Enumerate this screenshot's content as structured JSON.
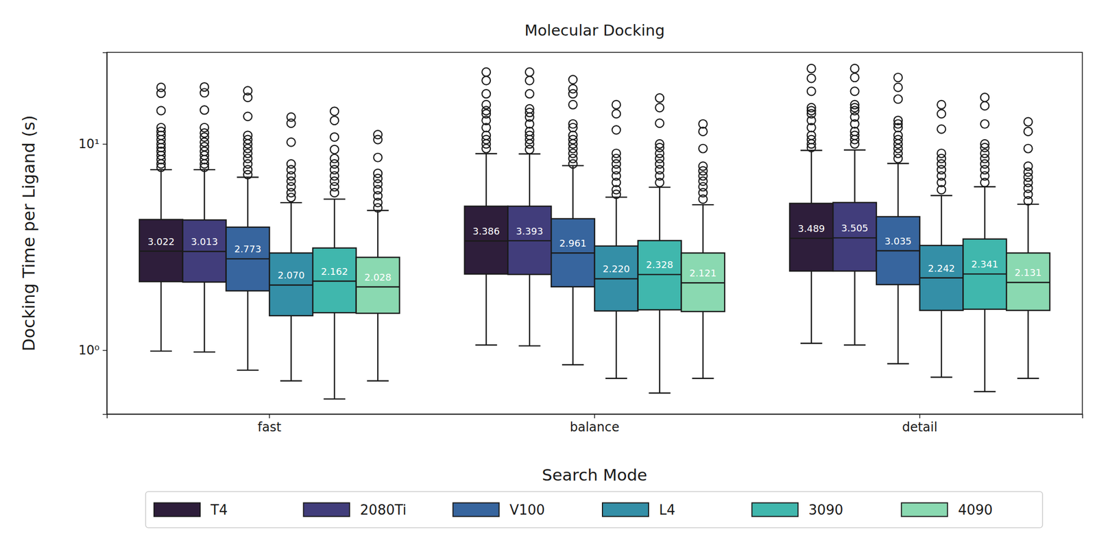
{
  "chart_data": {
    "type": "box",
    "title": "Molecular Docking",
    "x_label": "Search Mode",
    "y_label": "Docking Time per Ligand (s)",
    "categories": [
      "fast",
      "balance",
      "detail"
    ],
    "log": "y",
    "ylim": [
      0.49,
      27.8
    ],
    "yticks": [
      {
        "value": 1,
        "label": "10⁰"
      },
      {
        "value": 10,
        "label": "10¹"
      }
    ],
    "data_labels": true,
    "legend": "bottom",
    "series": [
      {
        "name": "T4",
        "color": "#2e1e3b",
        "values": [
          3.022,
          3.386,
          3.489
        ],
        "value_labels": [
          "3.022",
          "3.386",
          "3.489"
        ],
        "q1": [
          2.15,
          2.34,
          2.42
        ],
        "q3": [
          4.3,
          4.99,
          5.15
        ],
        "whisker_low": [
          0.99,
          1.06,
          1.08
        ],
        "whisker_high": [
          7.5,
          8.97,
          9.31
        ],
        "outliers": [
          [
            18.8,
            17.6,
            14.5,
            12.0,
            11.5,
            11.0,
            10.5,
            10.0,
            9.6,
            9.2,
            8.8,
            8.4,
            8.0,
            7.7
          ],
          [
            22.3,
            20.3,
            17.5,
            15.5,
            14.5,
            14.0,
            13.0,
            12.0,
            11.0,
            10.5,
            10.0,
            9.5
          ],
          [
            23.2,
            20.8,
            18.0,
            15.0,
            14.5,
            14.0,
            13.0,
            12.0,
            11.0,
            10.5,
            10.0,
            9.6
          ]
        ]
      },
      {
        "name": "2080Ti",
        "color": "#413d7b",
        "values": [
          3.013,
          3.393,
          3.505
        ],
        "value_labels": [
          "3.013",
          "3.393",
          "3.505"
        ],
        "q1": [
          2.14,
          2.33,
          2.42
        ],
        "q3": [
          4.28,
          4.99,
          5.2
        ],
        "whisker_low": [
          0.98,
          1.05,
          1.06
        ],
        "whisker_high": [
          7.5,
          8.95,
          9.35
        ],
        "outliers": [
          [
            18.9,
            17.7,
            14.6,
            12.0,
            11.3,
            10.8,
            10.2,
            9.7,
            9.2,
            8.8,
            8.4,
            8.0,
            7.7
          ],
          [
            22.3,
            20.3,
            17.5,
            14.8,
            14.2,
            13.5,
            12.5,
            11.5,
            11.0,
            10.5,
            10.0,
            9.4
          ],
          [
            23.2,
            21.0,
            18.0,
            15.5,
            15.0,
            14.5,
            13.5,
            12.5,
            11.5,
            11.0,
            10.5,
            10.0
          ]
        ]
      },
      {
        "name": "V100",
        "color": "#37659e",
        "values": [
          2.773,
          2.961,
          3.035
        ],
        "value_labels": [
          "2.773",
          "2.961",
          "3.035"
        ],
        "q1": [
          1.94,
          2.03,
          2.08
        ],
        "q3": [
          3.95,
          4.34,
          4.44
        ],
        "whisker_low": [
          0.8,
          0.85,
          0.86
        ],
        "whisker_high": [
          6.9,
          7.85,
          8.04
        ],
        "outliers": [
          [
            18.1,
            16.8,
            13.6,
            11.0,
            10.5,
            10.0,
            9.5,
            9.0,
            8.5,
            8.0,
            7.5,
            7.1
          ],
          [
            20.5,
            18.5,
            17.5,
            15.5,
            12.5,
            12.0,
            11.0,
            10.5,
            10.0,
            9.5,
            9.0,
            8.5,
            8.0
          ],
          [
            21.0,
            18.8,
            16.5,
            13.0,
            12.5,
            12.0,
            11.0,
            10.5,
            10.0,
            9.5,
            9.0,
            8.5
          ]
        ]
      },
      {
        "name": "L4",
        "color": "#348fa7",
        "values": [
          2.07,
          2.22,
          2.242
        ],
        "value_labels": [
          "2.070",
          "2.220",
          "2.242"
        ],
        "q1": [
          1.47,
          1.55,
          1.56
        ],
        "q3": [
          2.96,
          3.2,
          3.22
        ],
        "whisker_low": [
          0.71,
          0.73,
          0.74
        ],
        "whisker_high": [
          5.19,
          5.52,
          5.62
        ],
        "outliers": [
          [
            13.5,
            12.6,
            10.2,
            8.0,
            7.5,
            7.0,
            6.6,
            6.2,
            5.8,
            5.5
          ],
          [
            15.5,
            14.0,
            11.7,
            9.0,
            8.5,
            8.0,
            7.5,
            7.0,
            6.5,
            6.0,
            5.7
          ],
          [
            15.5,
            14.0,
            11.8,
            9.0,
            8.5,
            8.0,
            7.5,
            7.0,
            6.5,
            6.0
          ]
        ]
      },
      {
        "name": "3090",
        "color": "#40b7ad",
        "values": [
          2.162,
          2.328,
          2.341
        ],
        "value_labels": [
          "2.162",
          "2.328",
          "2.341"
        ],
        "q1": [
          1.52,
          1.57,
          1.58
        ],
        "q3": [
          3.13,
          3.4,
          3.46
        ],
        "whisker_low": [
          0.58,
          0.62,
          0.63
        ],
        "whisker_high": [
          5.4,
          6.17,
          6.2
        ],
        "outliers": [
          [
            14.4,
            13.0,
            10.8,
            9.4,
            8.5,
            8.0,
            7.5,
            7.0,
            6.6,
            6.2,
            5.8
          ],
          [
            16.7,
            15.0,
            12.6,
            10.0,
            9.6,
            9.0,
            8.5,
            8.0,
            7.5,
            7.0,
            6.5
          ],
          [
            16.8,
            15.3,
            12.5,
            10.0,
            9.6,
            9.0,
            8.5,
            8.0,
            7.5,
            7.0,
            6.5
          ]
        ]
      },
      {
        "name": "4090",
        "color": "#8ad9b1",
        "values": [
          2.028,
          2.121,
          2.131
        ],
        "value_labels": [
          "2.028",
          "2.121",
          "2.131"
        ],
        "q1": [
          1.51,
          1.54,
          1.56
        ],
        "q3": [
          2.82,
          2.96,
          2.96
        ],
        "whisker_low": [
          0.71,
          0.73,
          0.73
        ],
        "whisker_high": [
          4.76,
          5.07,
          5.1
        ],
        "outliers": [
          [
            11.1,
            10.5,
            8.6,
            7.2,
            6.8,
            6.4,
            6.0,
            5.6,
            5.2,
            4.9
          ],
          [
            12.5,
            11.5,
            9.5,
            7.8,
            7.4,
            7.0,
            6.6,
            6.2,
            5.8,
            5.4
          ],
          [
            12.8,
            11.5,
            9.5,
            7.8,
            7.3,
            6.9,
            6.5,
            6.1,
            5.7,
            5.3
          ]
        ]
      }
    ]
  }
}
